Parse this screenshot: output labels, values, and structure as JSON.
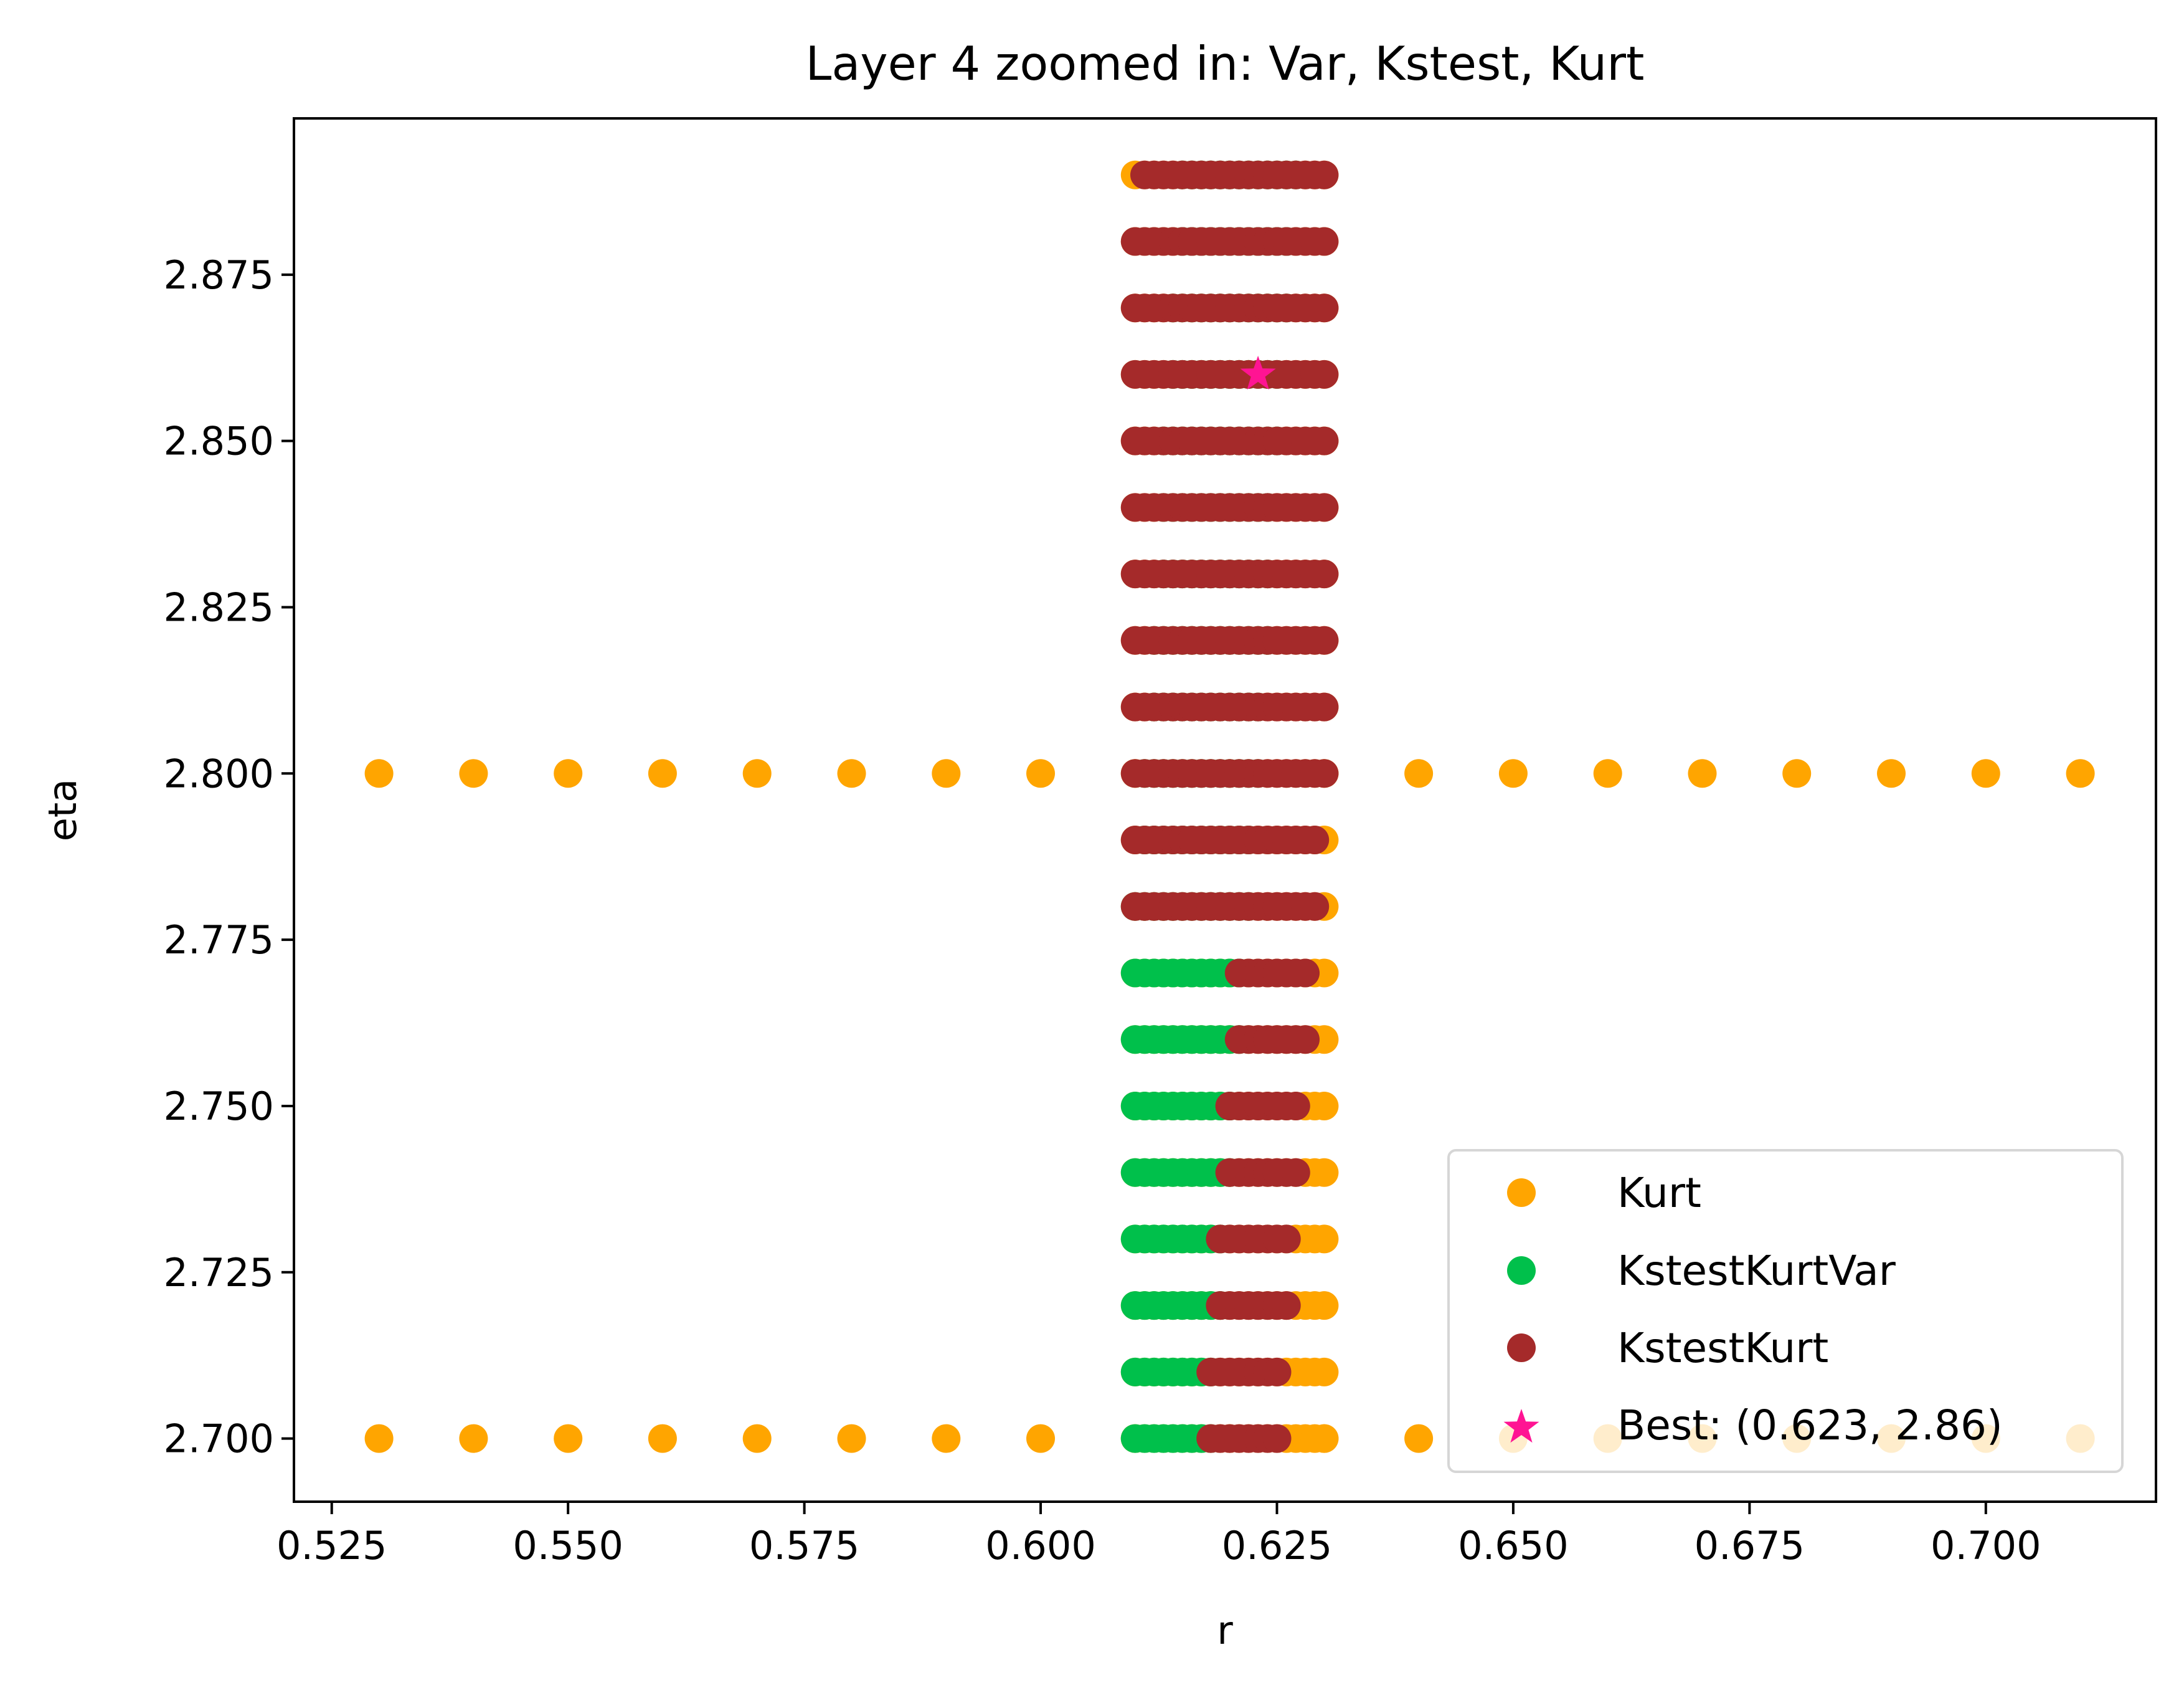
{
  "chart_data": {
    "type": "scatter",
    "title": "Layer 4 zoomed in: Var, Kstest, Kurt",
    "xlabel": "r",
    "ylabel": "eta",
    "xlim": [
      0.521,
      0.718
    ],
    "ylim": [
      2.6905,
      2.8985
    ],
    "xticks": [
      0.525,
      0.55,
      0.575,
      0.6,
      0.625,
      0.65,
      0.675,
      0.7
    ],
    "xtick_labels": [
      "0.525",
      "0.550",
      "0.575",
      "0.600",
      "0.625",
      "0.650",
      "0.675",
      "0.700"
    ],
    "yticks": [
      2.7,
      2.725,
      2.75,
      2.775,
      2.8,
      2.825,
      2.85,
      2.875
    ],
    "ytick_labels": [
      "2.700",
      "2.725",
      "2.750",
      "2.775",
      "2.800",
      "2.825",
      "2.850",
      "2.875"
    ],
    "grid": false,
    "legend_position": "lower-right",
    "series": [
      {
        "name": "Kurt",
        "marker": "circle",
        "color": "#FFA500",
        "sweeps": [
          {
            "y": 2.7,
            "x_from": 0.53,
            "x_to": 0.71,
            "x_step": 0.01
          },
          {
            "y": 2.8,
            "x_from": 0.53,
            "x_to": 0.71,
            "x_step": 0.01
          },
          {
            "y_from": 2.7,
            "y_to": 2.89,
            "y_step": 0.01,
            "x_from": 0.61,
            "x_to": 0.63,
            "x_step": 0.001
          }
        ]
      },
      {
        "name": "KstestKurtVar",
        "marker": "circle",
        "color": "#00C04B",
        "x_step": 0.001,
        "rows": [
          {
            "y": 2.7,
            "x_from": 0.61,
            "x_to": 0.618
          },
          {
            "y": 2.71,
            "x_from": 0.61,
            "x_to": 0.618
          },
          {
            "y": 2.72,
            "x_from": 0.61,
            "x_to": 0.619
          },
          {
            "y": 2.73,
            "x_from": 0.61,
            "x_to": 0.619
          },
          {
            "y": 2.74,
            "x_from": 0.61,
            "x_to": 0.62
          },
          {
            "y": 2.75,
            "x_from": 0.61,
            "x_to": 0.62
          },
          {
            "y": 2.76,
            "x_from": 0.61,
            "x_to": 0.621
          },
          {
            "y": 2.77,
            "x_from": 0.61,
            "x_to": 0.621
          },
          {
            "y": 2.78,
            "x_from": 0.61,
            "x_to": 0.622
          },
          {
            "y": 2.79,
            "x_from": 0.611,
            "x_to": 0.622
          },
          {
            "y": 2.8,
            "x_from": 0.611,
            "x_to": 0.623
          },
          {
            "y": 2.81,
            "x_from": 0.612,
            "x_to": 0.623
          },
          {
            "y": 2.82,
            "x_from": 0.612,
            "x_to": 0.624
          },
          {
            "y": 2.83,
            "x_from": 0.613,
            "x_to": 0.624
          },
          {
            "y": 2.84,
            "x_from": 0.613,
            "x_to": 0.624
          },
          {
            "y": 2.85,
            "x_from": 0.613,
            "x_to": 0.625
          },
          {
            "y": 2.86,
            "x_from": 0.614,
            "x_to": 0.625
          },
          {
            "y": 2.87,
            "x_from": 0.614,
            "x_to": 0.626
          },
          {
            "y": 2.88,
            "x_from": 0.615,
            "x_to": 0.626
          },
          {
            "y": 2.89,
            "x_from": 0.615,
            "x_to": 0.627
          }
        ]
      },
      {
        "name": "KstestKurt",
        "marker": "circle",
        "color": "#A52A2A",
        "x_step": 0.001,
        "rows": [
          {
            "y": 2.7,
            "x_from": 0.618,
            "x_to": 0.625
          },
          {
            "y": 2.71,
            "x_from": 0.618,
            "x_to": 0.625
          },
          {
            "y": 2.72,
            "x_from": 0.619,
            "x_to": 0.626
          },
          {
            "y": 2.73,
            "x_from": 0.619,
            "x_to": 0.626
          },
          {
            "y": 2.74,
            "x_from": 0.62,
            "x_to": 0.627
          },
          {
            "y": 2.75,
            "x_from": 0.62,
            "x_to": 0.627
          },
          {
            "y": 2.76,
            "x_from": 0.621,
            "x_to": 0.628
          },
          {
            "y": 2.77,
            "x_from": 0.621,
            "x_to": 0.628
          },
          {
            "y": 2.78,
            "x_from": 0.61,
            "x_to": 0.629
          },
          {
            "y": 2.79,
            "x_from": 0.61,
            "x_to": 0.629
          },
          {
            "y": 2.8,
            "x_from": 0.61,
            "x_to": 0.63
          },
          {
            "y": 2.81,
            "x_from": 0.61,
            "x_to": 0.63
          },
          {
            "y": 2.82,
            "x_from": 0.61,
            "x_to": 0.63
          },
          {
            "y": 2.83,
            "x_from": 0.61,
            "x_to": 0.63
          },
          {
            "y": 2.84,
            "x_from": 0.61,
            "x_to": 0.63
          },
          {
            "y": 2.85,
            "x_from": 0.61,
            "x_to": 0.63
          },
          {
            "y": 2.86,
            "x_from": 0.61,
            "x_to": 0.63
          },
          {
            "y": 2.87,
            "x_from": 0.61,
            "x_to": 0.63
          },
          {
            "y": 2.88,
            "x_from": 0.61,
            "x_to": 0.63
          },
          {
            "y": 2.89,
            "x_from": 0.611,
            "x_to": 0.63
          }
        ]
      },
      {
        "name": "Best: (0.623, 2.86)",
        "marker": "star",
        "color": "#FF1493",
        "points": [
          [
            0.623,
            2.86
          ]
        ]
      }
    ]
  }
}
